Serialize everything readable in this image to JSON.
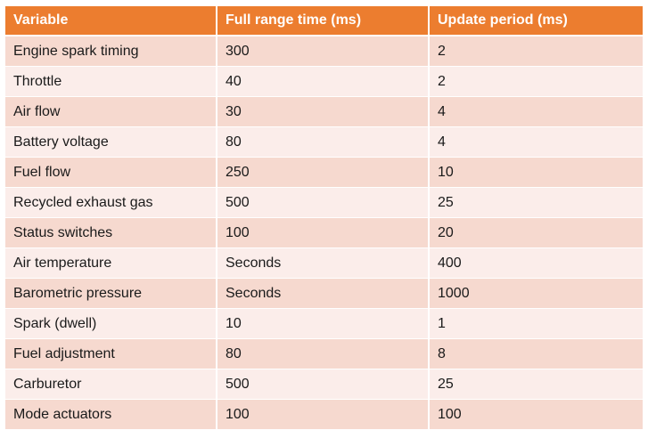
{
  "table": {
    "headers": [
      "Variable",
      "Full range time (ms)",
      "Update period (ms)"
    ],
    "rows": [
      [
        "Engine spark timing",
        "300",
        "2"
      ],
      [
        "Throttle",
        "40",
        "2"
      ],
      [
        "Air flow",
        "30",
        "4"
      ],
      [
        "Battery voltage",
        "80",
        "4"
      ],
      [
        "Fuel flow",
        "250",
        "10"
      ],
      [
        "Recycled exhaust gas",
        "500",
        "25"
      ],
      [
        "Status switches",
        "100",
        "20"
      ],
      [
        "Air temperature",
        "Seconds",
        "400"
      ],
      [
        "Barometric pressure",
        "Seconds",
        "1000"
      ],
      [
        "Spark (dwell)",
        "10",
        "1"
      ],
      [
        "Fuel adjustment",
        "80",
        "8"
      ],
      [
        "Carburetor",
        "500",
        "25"
      ],
      [
        "Mode actuators",
        "100",
        "100"
      ]
    ]
  },
  "colors": {
    "header_bg": "#ec7d2f",
    "row_odd_bg": "#f6d9cf",
    "row_even_bg": "#fbedea"
  }
}
